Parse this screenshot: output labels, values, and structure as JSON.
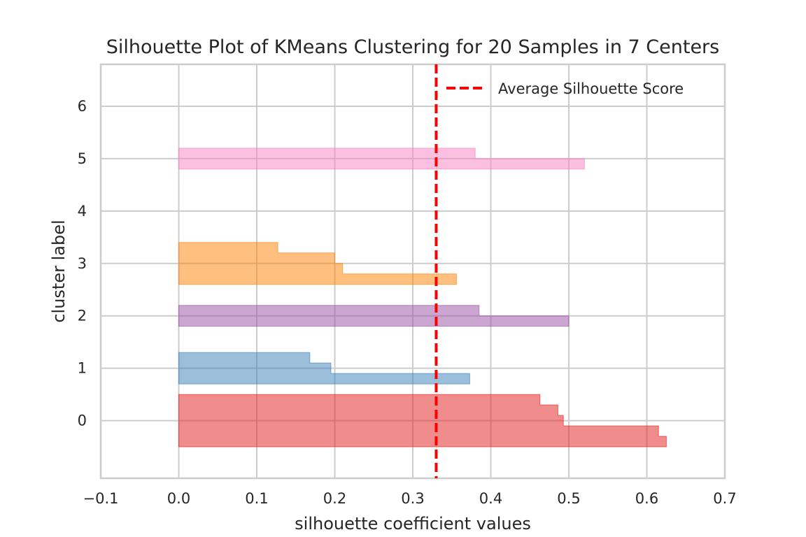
{
  "chart_data": {
    "type": "area",
    "title": "Silhouette Plot of KMeans Clustering for 20 Samples in 7 Centers",
    "xlabel": "silhouette coefficient values",
    "ylabel": "cluster label",
    "xlim": [
      -0.1,
      0.7
    ],
    "ylim": [
      -1.1,
      6.8
    ],
    "x_ticks": [
      "−0.1",
      "0.0",
      "0.1",
      "0.2",
      "0.3",
      "0.4",
      "0.5",
      "0.6",
      "0.7"
    ],
    "x_tick_values": [
      -0.1,
      0.0,
      0.1,
      0.2,
      0.3,
      0.4,
      0.5,
      0.6,
      0.7
    ],
    "y_ticks": [
      "0",
      "1",
      "2",
      "3",
      "4",
      "5",
      "6"
    ],
    "y_tick_values": [
      0,
      1,
      2,
      3,
      4,
      5,
      6
    ],
    "grid": true,
    "legend_position": "top-right",
    "average_silhouette_score": 0.33,
    "average_line_color": "#ff0000",
    "legend": [
      {
        "label": "Average Silhouette Score",
        "style": "dashed",
        "color": "#ff0000"
      }
    ],
    "series": [
      {
        "cluster": 0,
        "color": "#e41a1c",
        "samples": [
          0.625,
          0.615,
          0.493,
          0.486,
          0.463
        ]
      },
      {
        "cluster": 1,
        "color": "#377eb8",
        "samples": [
          0.373,
          0.195,
          0.168
        ]
      },
      {
        "cluster": 2,
        "color": "#984ea3",
        "samples": [
          0.5,
          0.385
        ]
      },
      {
        "cluster": 3,
        "color": "#ff7f00",
        "samples": [
          0.356,
          0.21,
          0.2,
          0.127
        ]
      },
      {
        "cluster": 5,
        "color": "#f781bf",
        "samples": [
          0.52,
          0.38
        ]
      }
    ]
  }
}
